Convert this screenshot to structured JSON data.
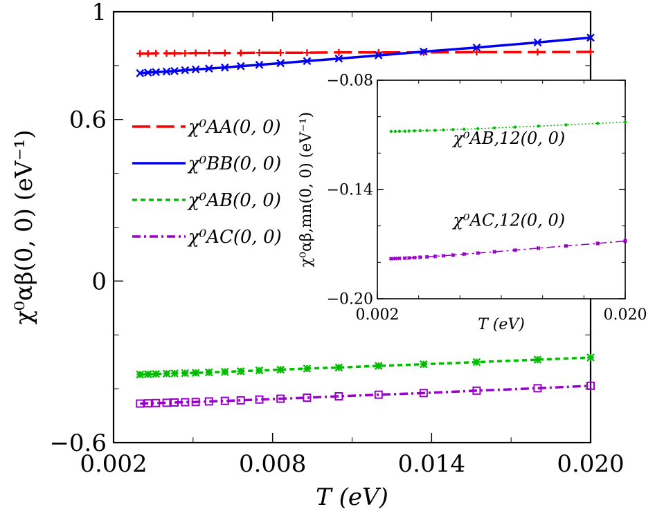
{
  "chart_data": [
    {
      "id": "main",
      "type": "line",
      "xlabel": "T (eV)",
      "ylabel": "χ⁰αβ(0, 0) (eV⁻¹)",
      "xlim": [
        0.002,
        0.02
      ],
      "ylim": [
        -0.6,
        1.0
      ],
      "xticks": [
        {
          "value": 0.002,
          "label": "0.002"
        },
        {
          "value": 0.008,
          "label": "0.008"
        },
        {
          "value": 0.014,
          "label": "0.014"
        },
        {
          "value": 0.02,
          "label": "0.020"
        }
      ],
      "yticks": [
        {
          "value": -0.6,
          "label": "−0.6"
        },
        {
          "value": 0.0,
          "label": "0"
        },
        {
          "value": 0.6,
          "label": "0.6"
        },
        {
          "value": 1.0,
          "label": "1"
        }
      ],
      "legend_position": "left",
      "series": [
        {
          "name": "χ⁰AA(0, 0)",
          "color": "#ff0000",
          "dash": "long-dash",
          "marker": "plus",
          "x": [
            0.003,
            0.0033,
            0.0036,
            0.004,
            0.0043,
            0.0047,
            0.0051,
            0.0056,
            0.0062,
            0.0068,
            0.0075,
            0.0083,
            0.0093,
            0.0105,
            0.012,
            0.0137,
            0.0157,
            0.018,
            0.02
          ],
          "y": [
            0.845,
            0.845,
            0.846,
            0.846,
            0.846,
            0.846,
            0.847,
            0.847,
            0.847,
            0.847,
            0.848,
            0.848,
            0.848,
            0.849,
            0.849,
            0.849,
            0.85,
            0.85,
            0.851
          ]
        },
        {
          "name": "χ⁰BB(0, 0)",
          "color": "#0000ee",
          "dash": "solid",
          "marker": "x",
          "x": [
            0.003,
            0.0033,
            0.0036,
            0.004,
            0.0043,
            0.0047,
            0.0051,
            0.0056,
            0.0062,
            0.0068,
            0.0075,
            0.0083,
            0.0093,
            0.0105,
            0.012,
            0.0137,
            0.0157,
            0.018,
            0.02
          ],
          "y": [
            0.772,
            0.774,
            0.776,
            0.778,
            0.78,
            0.783,
            0.786,
            0.789,
            0.793,
            0.798,
            0.803,
            0.809,
            0.817,
            0.826,
            0.838,
            0.852,
            0.867,
            0.886,
            0.904
          ]
        },
        {
          "name": "χ⁰AB(0, 0)",
          "color": "#00bb00",
          "dash": "short-dash",
          "marker": "asterisk",
          "x": [
            0.003,
            0.0033,
            0.0036,
            0.004,
            0.0043,
            0.0047,
            0.0051,
            0.0056,
            0.0062,
            0.0068,
            0.0075,
            0.0083,
            0.0093,
            0.0105,
            0.012,
            0.0137,
            0.0157,
            0.018,
            0.02
          ],
          "y": [
            -0.347,
            -0.346,
            -0.345,
            -0.344,
            -0.343,
            -0.342,
            -0.341,
            -0.339,
            -0.337,
            -0.335,
            -0.332,
            -0.329,
            -0.325,
            -0.321,
            -0.315,
            -0.309,
            -0.301,
            -0.292,
            -0.284
          ]
        },
        {
          "name": "χ⁰AC(0, 0)",
          "color": "#9900cc",
          "dash": "dash-dot",
          "marker": "square",
          "x": [
            0.003,
            0.0033,
            0.0036,
            0.004,
            0.0043,
            0.0047,
            0.0051,
            0.0056,
            0.0062,
            0.0068,
            0.0075,
            0.0083,
            0.0093,
            0.0105,
            0.012,
            0.0137,
            0.0157,
            0.018,
            0.02
          ],
          "y": [
            -0.455,
            -0.454,
            -0.453,
            -0.452,
            -0.451,
            -0.45,
            -0.449,
            -0.447,
            -0.445,
            -0.443,
            -0.44,
            -0.437,
            -0.433,
            -0.428,
            -0.422,
            -0.416,
            -0.407,
            -0.398,
            -0.389
          ]
        }
      ]
    },
    {
      "id": "inset",
      "type": "line",
      "xlabel": "T (eV)",
      "ylabel": "χ⁰αβ,mn(0, 0) (eV⁻¹)",
      "xlim": [
        0.002,
        0.02
      ],
      "ylim": [
        -0.2,
        -0.08
      ],
      "xticks": [
        {
          "value": 0.002,
          "label": "0.002"
        },
        {
          "value": 0.02,
          "label": "0.020"
        }
      ],
      "yticks": [
        {
          "value": -0.2,
          "label": "−0.20"
        },
        {
          "value": -0.14,
          "label": "−0.14"
        },
        {
          "value": -0.08,
          "label": "−0.08"
        }
      ],
      "series": [
        {
          "name": "χ⁰AB,12(0, 0)",
          "color": "#00bb00",
          "dash": "dotted",
          "marker": "plus",
          "x": [
            0.003,
            0.0033,
            0.0036,
            0.004,
            0.0043,
            0.0047,
            0.0051,
            0.0056,
            0.0062,
            0.0068,
            0.0075,
            0.0083,
            0.0093,
            0.0105,
            0.012,
            0.0137,
            0.0157,
            0.018,
            0.02
          ],
          "y": [
            -0.1081,
            -0.1081,
            -0.108,
            -0.108,
            -0.1079,
            -0.1078,
            -0.1077,
            -0.1076,
            -0.1075,
            -0.1073,
            -0.1071,
            -0.1069,
            -0.1066,
            -0.1062,
            -0.1057,
            -0.1052,
            -0.1045,
            -0.1037,
            -0.103
          ]
        },
        {
          "name": "χ⁰AC,12(0, 0)",
          "color": "#9900cc",
          "dash": "dash-dot",
          "marker": "x",
          "x": [
            0.003,
            0.0033,
            0.0036,
            0.004,
            0.0043,
            0.0047,
            0.0051,
            0.0056,
            0.0062,
            0.0068,
            0.0075,
            0.0083,
            0.0093,
            0.0105,
            0.012,
            0.0137,
            0.0157,
            0.018,
            0.02
          ],
          "y": [
            -0.178,
            -0.1779,
            -0.1778,
            -0.1777,
            -0.1776,
            -0.1774,
            -0.1772,
            -0.177,
            -0.1767,
            -0.1764,
            -0.176,
            -0.1755,
            -0.1749,
            -0.1742,
            -0.1733,
            -0.1722,
            -0.171,
            -0.1696,
            -0.1683
          ]
        }
      ]
    }
  ]
}
